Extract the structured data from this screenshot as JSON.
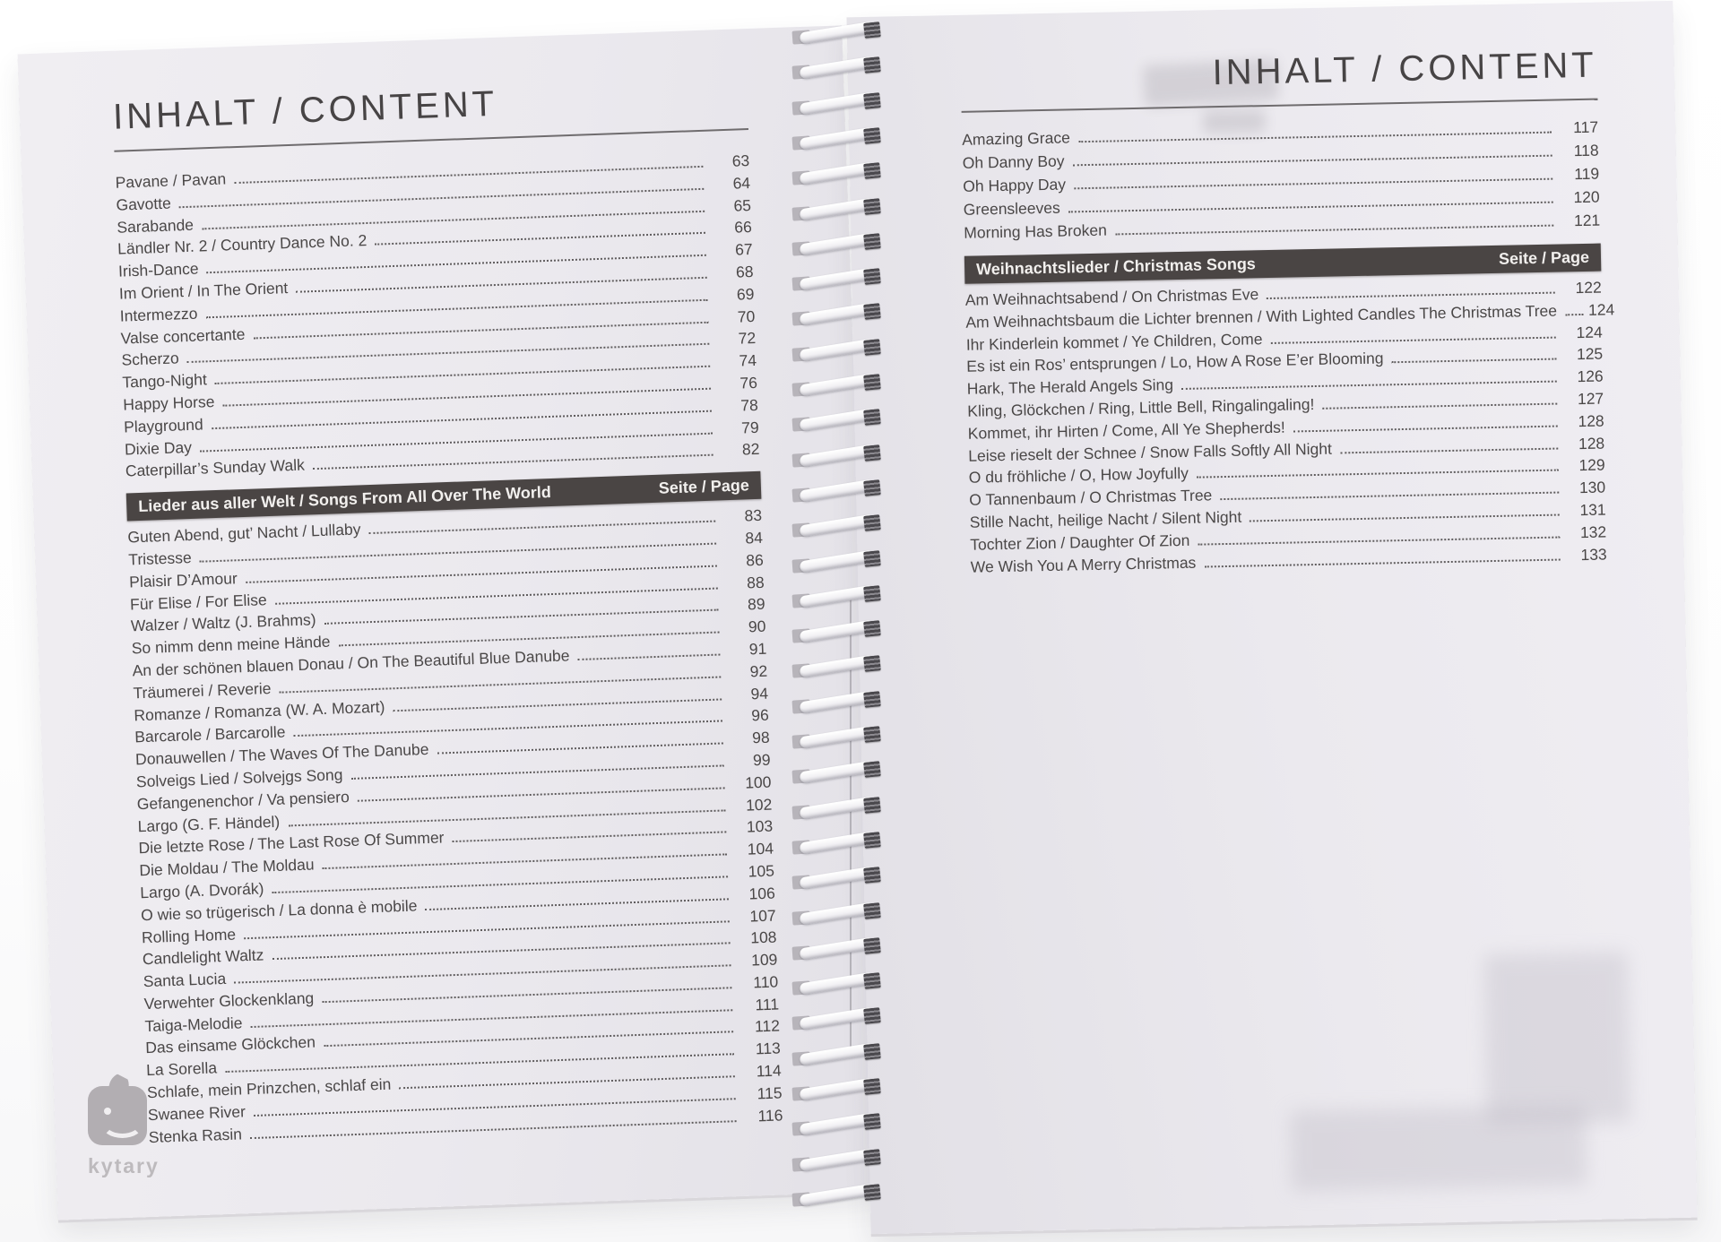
{
  "watermark": {
    "brand": "kytary"
  },
  "colors": {
    "page_background": "#ebe9ee",
    "outer_background": "#ffffff",
    "text": "#4a4747",
    "section_bar_background": "#4a4544",
    "section_bar_text": "#f2f0ee",
    "dot_leader": "#5f5c5d",
    "watermark_gray": "#a8a4a8"
  },
  "left_page": {
    "title": "INHALT / CONTENT",
    "entries": [
      {
        "t": "Pavane / Pavan",
        "p": "63"
      },
      {
        "t": "Gavotte",
        "p": "64"
      },
      {
        "t": "Sarabande",
        "p": "65"
      },
      {
        "t": "Ländler Nr. 2 / Country Dance No. 2",
        "p": "66"
      },
      {
        "t": "Irish-Dance",
        "p": "67"
      },
      {
        "t": "Im Orient / In The Orient",
        "p": "68"
      },
      {
        "t": "Intermezzo",
        "p": "69"
      },
      {
        "t": "Valse concertante",
        "p": "70"
      },
      {
        "t": "Scherzo",
        "p": "72"
      },
      {
        "t": "Tango-Night",
        "p": "74"
      },
      {
        "t": "Happy Horse",
        "p": "76"
      },
      {
        "t": "Playground",
        "p": "78"
      },
      {
        "t": "Dixie Day",
        "p": "79"
      },
      {
        "t": "Caterpillar’s Sunday Walk",
        "p": "82"
      }
    ],
    "section": {
      "label": "Lieder aus aller Welt / Songs From All Over The World",
      "page_label": "Seite / Page"
    },
    "entries2": [
      {
        "t": "Guten Abend, gut’ Nacht / Lullaby",
        "p": "83"
      },
      {
        "t": "Tristesse",
        "p": "84"
      },
      {
        "t": "Plaisir D’Amour",
        "p": "86"
      },
      {
        "t": "Für Elise / For Elise",
        "p": "88"
      },
      {
        "t": "Walzer / Waltz (J. Brahms)",
        "p": "89"
      },
      {
        "t": "So nimm denn meine Hände",
        "p": "90"
      },
      {
        "t": "An der schönen blauen Donau / On The Beautiful Blue Danube",
        "p": "91"
      },
      {
        "t": "Träumerei / Reverie",
        "p": "92"
      },
      {
        "t": "Romanze / Romanza (W. A. Mozart)",
        "p": "94"
      },
      {
        "t": "Barcarole / Barcarolle",
        "p": "96"
      },
      {
        "t": "Donauwellen / The Waves Of The Danube",
        "p": "98"
      },
      {
        "t": "Solveigs Lied / Solvejgs Song",
        "p": "99"
      },
      {
        "t": "Gefangenenchor / Va pensiero",
        "p": "100"
      },
      {
        "t": "Largo (G. F. Händel)",
        "p": "102"
      },
      {
        "t": "Die letzte Rose / The Last Rose Of Summer",
        "p": "103"
      },
      {
        "t": "Die Moldau / The Moldau",
        "p": "104"
      },
      {
        "t": "Largo (A. Dvorák)",
        "p": "105"
      },
      {
        "t": "O wie so trügerisch / La donna è mobile",
        "p": "106"
      },
      {
        "t": "Rolling Home",
        "p": "107"
      },
      {
        "t": "Candlelight Waltz",
        "p": "108"
      },
      {
        "t": "Santa Lucia",
        "p": "109"
      },
      {
        "t": "Verwehter Glockenklang",
        "p": "110"
      },
      {
        "t": "Taiga-Melodie",
        "p": "111"
      },
      {
        "t": "Das einsame Glöckchen",
        "p": "112"
      },
      {
        "t": "La Sorella",
        "p": "113"
      },
      {
        "t": "Schlafe, mein Prinzchen, schlaf ein",
        "p": "114"
      },
      {
        "t": "Swanee River",
        "p": "115"
      },
      {
        "t": "Stenka Rasin",
        "p": "116"
      }
    ]
  },
  "right_page": {
    "title": "INHALT / CONTENT",
    "entries": [
      {
        "t": "Amazing Grace",
        "p": "117"
      },
      {
        "t": "Oh Danny Boy",
        "p": "118"
      },
      {
        "t": "Oh Happy Day",
        "p": "119"
      },
      {
        "t": "Greensleeves",
        "p": "120"
      },
      {
        "t": "Morning Has Broken",
        "p": "121"
      }
    ],
    "section": {
      "label": "Weihnachtslieder / Christmas Songs",
      "page_label": "Seite / Page"
    },
    "entries2": [
      {
        "t": "Am Weihnachtsabend / On Christmas Eve",
        "p": "122"
      },
      {
        "t": "Am Weihnachtsbaum die Lichter brennen / With Lighted Candles The Christmas Tree",
        "p": "124"
      },
      {
        "t": "Ihr Kinderlein kommet / Ye Children, Come",
        "p": "124"
      },
      {
        "t": "Es ist ein Ros’ entsprungen / Lo, How A Rose E’er Blooming",
        "p": "125"
      },
      {
        "t": "Hark, The Herald Angels Sing",
        "p": "126"
      },
      {
        "t": "Kling, Glöckchen / Ring, Little Bell, Ringalingaling!",
        "p": "127"
      },
      {
        "t": "Kommet, ihr Hirten / Come, All Ye Shepherds!",
        "p": "128"
      },
      {
        "t": "Leise rieselt der Schnee / Snow Falls Softly All Night",
        "p": "128"
      },
      {
        "t": "O du fröhliche / O, How Joyfully",
        "p": "129"
      },
      {
        "t": "O Tannenbaum / O Christmas Tree",
        "p": "130"
      },
      {
        "t": "Stille Nacht, heilige Nacht / Silent Night",
        "p": "131"
      },
      {
        "t": "Tochter Zion / Daughter Of Zion",
        "p": "132"
      },
      {
        "t": "We Wish You A Merry Christmas",
        "p": "133"
      }
    ]
  }
}
